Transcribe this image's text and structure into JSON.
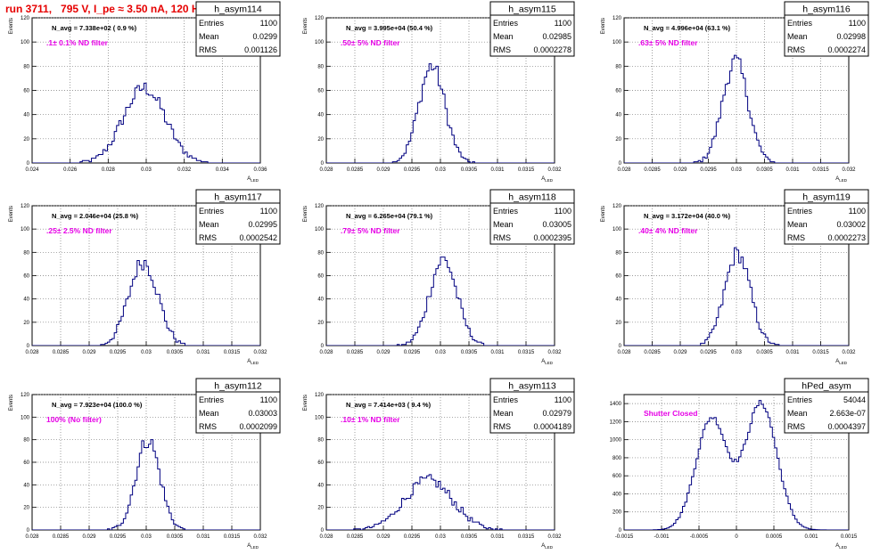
{
  "page": {
    "title": "run 3711,   795 V, I_pe ≈ 3.50 nA, 120 Hz"
  },
  "chart_data": [
    {
      "type": "histogram",
      "name": "h_asym114",
      "annotation": "N_avg = 7.338e+02 ( 0.9 %)",
      "filter": ".1± 0.1% ND filter",
      "stats": {
        "entries_label": "Entries",
        "entries": "1100",
        "mean_label": "Mean",
        "mean": "0.0299",
        "rms_label": "RMS",
        "rms": "0.001126"
      },
      "xlabel": "A_LED",
      "ylabel": "Events",
      "xlim": [
        0.024,
        0.036
      ],
      "ylim": [
        0,
        120
      ],
      "xticks": [
        "0.024",
        "0.026",
        "0.028",
        "0.03",
        "0.032",
        "0.034",
        "0.036"
      ],
      "yticks": [
        "0",
        "20",
        "40",
        "60",
        "80",
        "100",
        "120"
      ],
      "peak": {
        "center": 0.0299,
        "sigma": 0.0011,
        "height": 62
      },
      "color": "#000080"
    },
    {
      "type": "histogram",
      "name": "h_asym115",
      "annotation": "N_avg = 3.995e+04 (50.4 %)",
      "filter": ".50± 5% ND filter",
      "stats": {
        "entries_label": "Entries",
        "entries": "1100",
        "mean_label": "Mean",
        "mean": "0.02985",
        "rms_label": "RMS",
        "rms": "0.0002278"
      },
      "xlabel": "A_LED",
      "ylabel": "Events",
      "xlim": [
        0.028,
        0.032
      ],
      "ylim": [
        0,
        120
      ],
      "xticks": [
        "0.028",
        "0.0285",
        "0.029",
        "0.0295",
        "0.03",
        "0.0305",
        "0.031",
        "0.0315",
        "0.032"
      ],
      "yticks": [
        "0",
        "20",
        "40",
        "60",
        "80",
        "100",
        "120"
      ],
      "peak": {
        "center": 0.02985,
        "sigma": 0.000228,
        "height": 80
      },
      "color": "#000080"
    },
    {
      "type": "histogram",
      "name": "h_asym116",
      "annotation": "N_avg = 4.996e+04 (63.1 %)",
      "filter": ".63± 5% ND filter",
      "stats": {
        "entries_label": "Entries",
        "entries": "1100",
        "mean_label": "Mean",
        "mean": "0.02998",
        "rms_label": "RMS",
        "rms": "0.0002274"
      },
      "xlabel": "A_LED",
      "ylabel": "Events",
      "xlim": [
        0.028,
        0.032
      ],
      "ylim": [
        0,
        120
      ],
      "xticks": [
        "0.028",
        "0.0285",
        "0.029",
        "0.0295",
        "0.03",
        "0.0305",
        "0.031",
        "0.0315",
        "0.032"
      ],
      "yticks": [
        "0",
        "20",
        "40",
        "60",
        "80",
        "100",
        "120"
      ],
      "peak": {
        "center": 0.02998,
        "sigma": 0.000227,
        "height": 84
      },
      "color": "#000080"
    },
    {
      "type": "histogram",
      "name": "h_asym117",
      "annotation": "N_avg = 2.046e+04 (25.8 %)",
      "filter": ".25± 2.5% ND filter",
      "stats": {
        "entries_label": "Entries",
        "entries": "1100",
        "mean_label": "Mean",
        "mean": "0.02995",
        "rms_label": "RMS",
        "rms": "0.0002542"
      },
      "xlabel": "A_LED",
      "ylabel": "Events",
      "xlim": [
        0.028,
        0.032
      ],
      "ylim": [
        0,
        120
      ],
      "xticks": [
        "0.028",
        "0.0285",
        "0.029",
        "0.0295",
        "0.03",
        "0.0305",
        "0.031",
        "0.0315",
        "0.032"
      ],
      "yticks": [
        "0",
        "20",
        "40",
        "60",
        "80",
        "100",
        "120"
      ],
      "peak": {
        "center": 0.02995,
        "sigma": 0.000254,
        "height": 72
      },
      "color": "#000080"
    },
    {
      "type": "histogram",
      "name": "h_asym118",
      "annotation": "N_avg = 6.265e+04 (79.1 %)",
      "filter": ".79± 5% ND filter",
      "stats": {
        "entries_label": "Entries",
        "entries": "1100",
        "mean_label": "Mean",
        "mean": "0.03005",
        "rms_label": "RMS",
        "rms": "0.0002395"
      },
      "xlabel": "A_LED",
      "ylabel": "Events",
      "xlim": [
        0.028,
        0.032
      ],
      "ylim": [
        0,
        120
      ],
      "xticks": [
        "0.028",
        "0.0285",
        "0.029",
        "0.0295",
        "0.03",
        "0.0305",
        "0.031",
        "0.0315",
        "0.032"
      ],
      "yticks": [
        "0",
        "20",
        "40",
        "60",
        "80",
        "100",
        "120"
      ],
      "peak": {
        "center": 0.03005,
        "sigma": 0.00024,
        "height": 74
      },
      "color": "#000080"
    },
    {
      "type": "histogram",
      "name": "h_asym119",
      "annotation": "N_avg = 3.172e+04 (40.0 %)",
      "filter": ".40± 4% ND filter",
      "stats": {
        "entries_label": "Entries",
        "entries": "1100",
        "mean_label": "Mean",
        "mean": "0.03002",
        "rms_label": "RMS",
        "rms": "0.0002273"
      },
      "xlabel": "A_LED",
      "ylabel": "Events",
      "xlim": [
        0.028,
        0.032
      ],
      "ylim": [
        0,
        120
      ],
      "xticks": [
        "0.028",
        "0.0285",
        "0.029",
        "0.0295",
        "0.03",
        "0.0305",
        "0.031",
        "0.0315",
        "0.032"
      ],
      "yticks": [
        "0",
        "20",
        "40",
        "60",
        "80",
        "100",
        "120"
      ],
      "peak": {
        "center": 0.03002,
        "sigma": 0.000227,
        "height": 79
      },
      "color": "#000080"
    },
    {
      "type": "histogram",
      "name": "h_asym112",
      "annotation": "N_avg = 7.923e+04 (100.0 %)",
      "filter": "100% (No filter)",
      "stats": {
        "entries_label": "Entries",
        "entries": "1100",
        "mean_label": "Mean",
        "mean": "0.03003",
        "rms_label": "RMS",
        "rms": "0.0002099"
      },
      "xlabel": "A_LED",
      "ylabel": "Events",
      "xlim": [
        0.028,
        0.032
      ],
      "ylim": [
        0,
        120
      ],
      "xticks": [
        "0.028",
        "0.0285",
        "0.029",
        "0.0295",
        "0.03",
        "0.0305",
        "0.031",
        "0.0315",
        "0.032"
      ],
      "yticks": [
        "0",
        "20",
        "40",
        "60",
        "80",
        "100",
        "120"
      ],
      "peak": {
        "center": 0.03003,
        "sigma": 0.00021,
        "height": 80
      },
      "color": "#000080"
    },
    {
      "type": "histogram",
      "name": "h_asym113",
      "annotation": "N_avg = 7.414e+03 ( 9.4 %)",
      "filter": ".10± 1% ND filter",
      "stats": {
        "entries_label": "Entries",
        "entries": "1100",
        "mean_label": "Mean",
        "mean": "0.02979",
        "rms_label": "RMS",
        "rms": "0.0004189"
      },
      "xlabel": "A_LED",
      "ylabel": "Events",
      "xlim": [
        0.028,
        0.032
      ],
      "ylim": [
        0,
        120
      ],
      "xticks": [
        "0.028",
        "0.0285",
        "0.029",
        "0.0295",
        "0.03",
        "0.0305",
        "0.031",
        "0.0315",
        "0.032"
      ],
      "yticks": [
        "0",
        "20",
        "40",
        "60",
        "80",
        "100",
        "120"
      ],
      "peak": {
        "center": 0.02979,
        "sigma": 0.000419,
        "height": 44
      },
      "color": "#000080"
    },
    {
      "type": "histogram",
      "name": "hPed_asym",
      "annotation": "",
      "filter": "Shutter Closed",
      "stats": {
        "entries_label": "Entries",
        "entries": "54044",
        "mean_label": "Mean",
        "mean": "2.663e-07",
        "rms_label": "RMS",
        "rms": "0.0004397"
      },
      "xlabel": "A_LED",
      "ylabel": "",
      "xlim": [
        -0.0015,
        0.0015
      ],
      "ylim": [
        0,
        1500
      ],
      "xticks": [
        "-0.0015",
        "-0.001",
        "-0.0005",
        "0",
        "0.0005",
        "0.001",
        "0.0015"
      ],
      "yticks": [
        "0",
        "200",
        "400",
        "600",
        "800",
        "1000",
        "1200",
        "1400"
      ],
      "double_peak": [
        {
          "center": -0.00033,
          "sigma": 0.00021,
          "height": 1240
        },
        {
          "center": 0.00033,
          "sigma": 0.00021,
          "height": 1400
        }
      ],
      "color": "#000080"
    }
  ]
}
